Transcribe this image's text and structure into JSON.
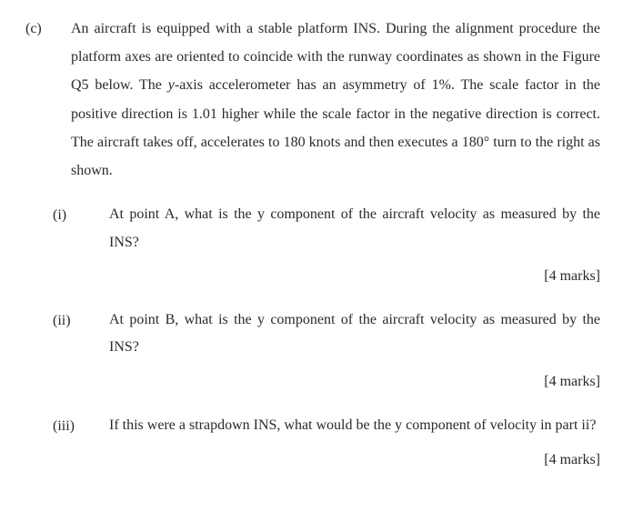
{
  "question": {
    "marker": "(c)",
    "intro_parts": {
      "p1": "An aircraft is equipped with a stable platform INS. During the alignment procedure the platform axes are oriented to coincide with the runway coordinates as shown in the Figure Q5 below. The ",
      "p2_italic": "y",
      "p3": "-axis accelerometer has an asymmetry of 1%. The scale factor in the positive direction is 1.01 higher while the scale factor in the negative direction is correct. The aircraft takes off, accelerates to 180 knots and then executes a 180° turn to the right as shown."
    },
    "items": [
      {
        "marker": "(i)",
        "text": "At point A, what is the y component of the aircraft velocity as measured by the INS?",
        "marks": "[4 marks]"
      },
      {
        "marker": "(ii)",
        "text": "At point B, what is the y component of the aircraft velocity as measured by the INS?",
        "marks": "[4 marks]"
      },
      {
        "marker": "(iii)",
        "text": "If this were a strapdown INS, what would be the y component of velocity in part ii?",
        "marks": "[4 marks]"
      }
    ]
  }
}
